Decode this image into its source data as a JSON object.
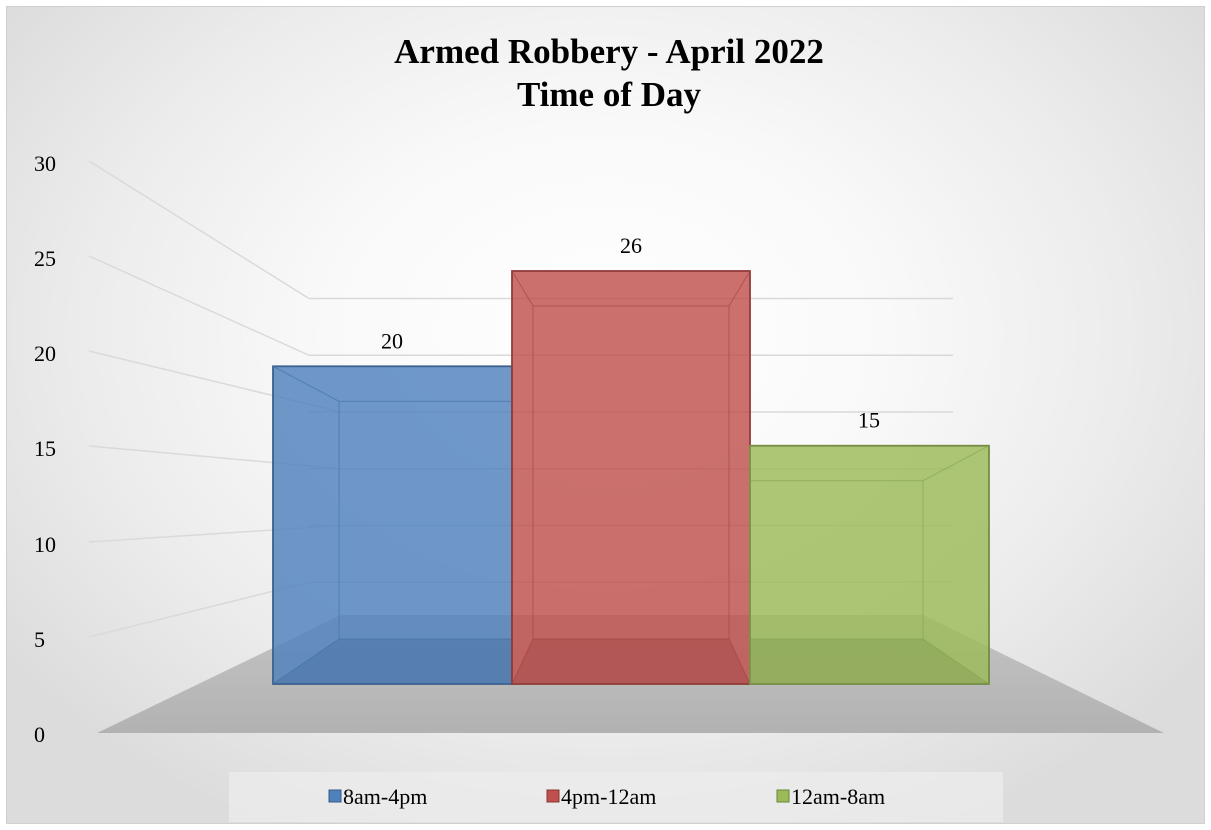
{
  "chart_data": {
    "type": "bar",
    "title_line1": "Armed Robbery - April 2022",
    "title_line2": "Time of Day",
    "series": [
      {
        "name": "8am-4pm",
        "value": 20,
        "label": "20",
        "color": "#4F81BD"
      },
      {
        "name": "4pm-12am",
        "value": 26,
        "label": "26",
        "color": "#C0504D"
      },
      {
        "name": "12am-8am",
        "value": 15,
        "label": "15",
        "color": "#9BBB59"
      }
    ],
    "yticks": [
      "0",
      "5",
      "10",
      "15",
      "20",
      "25",
      "30"
    ],
    "ylim": [
      0,
      30
    ],
    "grid": true,
    "legend_position": "bottom",
    "style": "3d-bar"
  }
}
